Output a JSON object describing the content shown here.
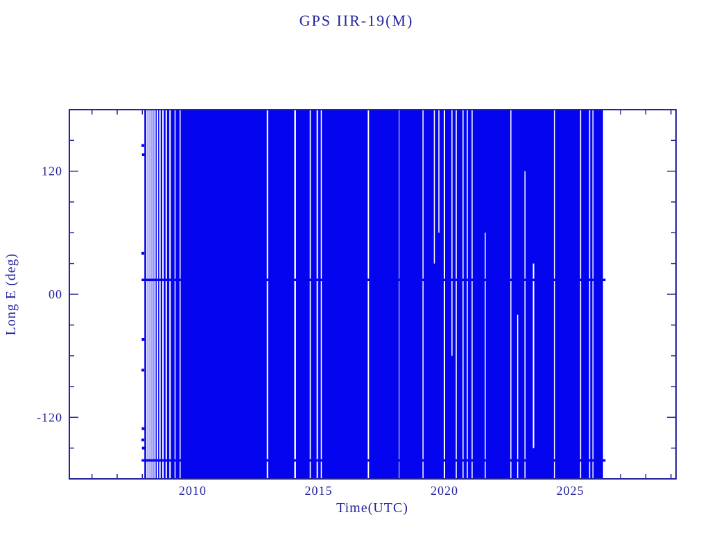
{
  "colors": {
    "background": "#ffffff",
    "frame": "#24249c",
    "data": "#0404ef",
    "gap": "#ffffff"
  },
  "chart_data": {
    "type": "scatter",
    "title": "GPS IIR-19(M)",
    "xlabel": "Time(UTC)",
    "ylabel": "Long E (deg)",
    "xlim": [
      2005.1,
      2029.2
    ],
    "ylim": [
      -180,
      180
    ],
    "x_major_ticks": [
      2010,
      2015,
      2020,
      2025
    ],
    "x_tick_labels": [
      "2010",
      "2015",
      "2020",
      "2025"
    ],
    "x_minor_step": 1,
    "y_major_ticks": [
      -120,
      0,
      120
    ],
    "y_tick_labels": [
      "-120",
      "00",
      "120"
    ],
    "y_minor_step": 30,
    "coverage": {
      "start": 2008.08,
      "end": 2026.3,
      "y_min": -180,
      "y_max": 180
    },
    "dense_bands": [
      {
        "y": 14,
        "start": 2007.97,
        "end": 2026.4,
        "thickness_px": 3.5
      },
      {
        "y": -162,
        "start": 2007.97,
        "end": 2026.4,
        "thickness_px": 3.5
      }
    ],
    "gaps": [
      {
        "x": 2008.18,
        "w": 2
      },
      {
        "x": 2008.26,
        "w": 2
      },
      {
        "x": 2008.34,
        "w": 2
      },
      {
        "x": 2008.42,
        "w": 2
      },
      {
        "x": 2008.5,
        "w": 2
      },
      {
        "x": 2008.6,
        "w": 2
      },
      {
        "x": 2008.7,
        "w": 2
      },
      {
        "x": 2008.82,
        "w": 2
      },
      {
        "x": 2008.95,
        "w": 2
      },
      {
        "x": 2009.1,
        "w": 2
      },
      {
        "x": 2009.3,
        "w": 1.5
      },
      {
        "x": 2009.5,
        "w": 1.5
      },
      {
        "x": 2012.97,
        "w": 2
      },
      {
        "x": 2014.07,
        "w": 2.5
      },
      {
        "x": 2014.67,
        "w": 1.5
      },
      {
        "x": 2014.95,
        "w": 2
      },
      {
        "x": 2015.11,
        "w": 1.5
      },
      {
        "x": 2016.98,
        "w": 2
      },
      {
        "x": 2018.2,
        "w": 1
      },
      {
        "x": 2019.15,
        "w": 1.5
      },
      {
        "x": 2019.6,
        "w": 1.5,
        "y1": 30,
        "y2": 180
      },
      {
        "x": 2019.78,
        "w": 1.5,
        "y1": 60,
        "y2": 180
      },
      {
        "x": 2020.0,
        "w": 2
      },
      {
        "x": 2020.3,
        "w": 1.5,
        "y1": -60,
        "y2": 180
      },
      {
        "x": 2020.47,
        "w": 1.5
      },
      {
        "x": 2020.74,
        "w": 1.5
      },
      {
        "x": 2020.91,
        "w": 1.5
      },
      {
        "x": 2021.1,
        "w": 1.5
      },
      {
        "x": 2021.62,
        "w": 1.5,
        "y1": -180,
        "y2": 60
      },
      {
        "x": 2022.64,
        "w": 1.5
      },
      {
        "x": 2022.91,
        "w": 1.5,
        "y1": -180,
        "y2": -20
      },
      {
        "x": 2023.2,
        "w": 1.5,
        "y1": -180,
        "y2": 120
      },
      {
        "x": 2023.54,
        "w": 2,
        "y1": -150,
        "y2": 30
      },
      {
        "x": 2024.37,
        "w": 1.5
      },
      {
        "x": 2025.41,
        "w": 1.5
      },
      {
        "x": 2025.77,
        "w": 1.5
      },
      {
        "x": 2025.9,
        "w": 1.5
      }
    ],
    "sparse_points": [
      {
        "x": 2008.02,
        "y": 145
      },
      {
        "x": 2008.04,
        "y": 136
      },
      {
        "x": 2008.02,
        "y": 40
      },
      {
        "x": 2008.03,
        "y": -44
      },
      {
        "x": 2008.02,
        "y": -74
      },
      {
        "x": 2008.03,
        "y": -131
      },
      {
        "x": 2008.02,
        "y": -142
      },
      {
        "x": 2008.04,
        "y": -150
      }
    ]
  }
}
